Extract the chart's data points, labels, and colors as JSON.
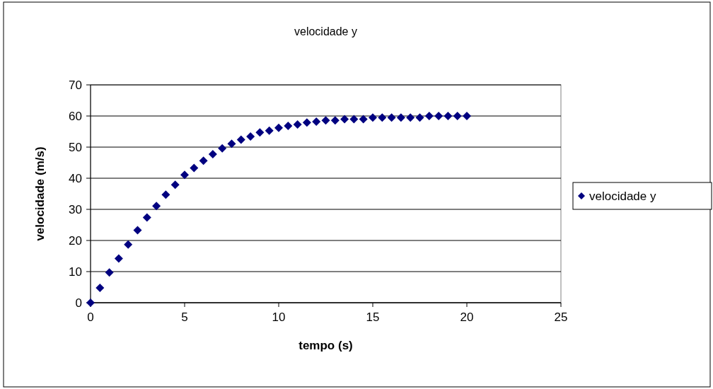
{
  "chart_data": {
    "type": "scatter",
    "title": "velocidade y",
    "xlabel": "tempo (s)",
    "ylabel": "velocidade (m/s)",
    "x": [
      0,
      0.5,
      1,
      1.5,
      2,
      2.5,
      3,
      3.5,
      4,
      4.5,
      5,
      5.5,
      6,
      6.5,
      7,
      7.5,
      8,
      8.5,
      9,
      9.5,
      10,
      10.5,
      11,
      11.5,
      12,
      12.5,
      13,
      13.5,
      14,
      14.5,
      15,
      15.5,
      16,
      16.5,
      17,
      17.5,
      18,
      18.5,
      19,
      19.5,
      20
    ],
    "series": [
      {
        "name": "velocidade y",
        "color": "#000080",
        "values": [
          0,
          4.8,
          9.7,
          14.2,
          18.7,
          23.3,
          27.4,
          31.1,
          34.7,
          37.9,
          41.1,
          43.3,
          45.6,
          47.7,
          49.6,
          51.1,
          52.4,
          53.4,
          54.7,
          55.3,
          56.2,
          56.8,
          57.3,
          57.9,
          58.2,
          58.6,
          58.6,
          59,
          59,
          59,
          59.5,
          59.5,
          59.5,
          59.5,
          59.5,
          59.5,
          60,
          60,
          60,
          60,
          60
        ]
      }
    ],
    "xlim": [
      0,
      25
    ],
    "xticks": [
      0,
      5,
      10,
      15,
      20,
      25
    ],
    "ylim": [
      0,
      70
    ],
    "yticks": [
      0,
      10,
      20,
      30,
      40,
      50,
      60,
      70
    ],
    "grid": "y",
    "legend": "right",
    "marker": "diamond"
  }
}
